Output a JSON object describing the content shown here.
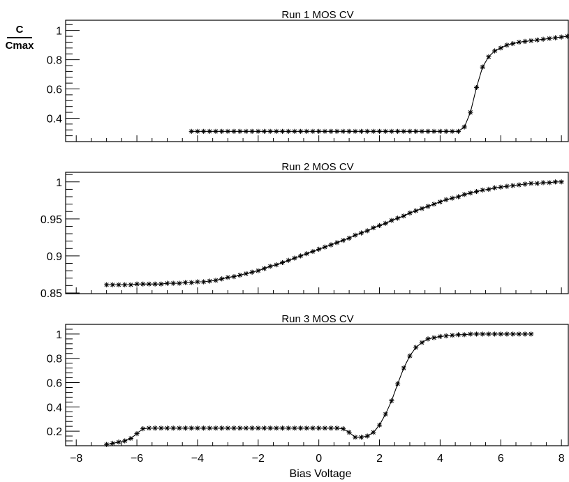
{
  "figure": {
    "xlabel": "Bias Voltage",
    "ylabel_numerator": "C",
    "ylabel_denominator": "Cmax",
    "x_ticks": [
      "−8",
      "−6",
      "−4",
      "−2",
      "0",
      "2",
      "4",
      "6",
      "8"
    ]
  },
  "chart_data": [
    {
      "type": "line",
      "title": "Run 1 MOS CV",
      "xlabel": "Bias Voltage",
      "ylabel": "C/Cmax",
      "xlim": [
        -8.35,
        8.25
      ],
      "ylim": [
        0.24,
        1.07
      ],
      "yticks": [
        0.4,
        0.6,
        0.8,
        1
      ],
      "ytick_labels": [
        "0.4",
        "0.6",
        "0.8",
        "1"
      ],
      "marker": "asterisk",
      "series": [
        {
          "x": [
            -4.2,
            -4.0,
            -3.8,
            -3.6,
            -3.4,
            -3.2,
            -3.0,
            -2.8,
            -2.6,
            -2.4,
            -2.2,
            -2.0,
            -1.8,
            -1.6,
            -1.4,
            -1.2,
            -1.0,
            -0.8,
            -0.6,
            -0.4,
            -0.2,
            0.0,
            0.2,
            0.4,
            0.6,
            0.8,
            1.0,
            1.2,
            1.4,
            1.6,
            1.8,
            2.0,
            2.2,
            2.4,
            2.6,
            2.8,
            3.0,
            3.2,
            3.4,
            3.6,
            3.8,
            4.0,
            4.2,
            4.4,
            4.6,
            4.8,
            5.0,
            5.2,
            5.4,
            5.6,
            5.8,
            6.0,
            6.2,
            6.4,
            6.6,
            6.8,
            7.0,
            7.2,
            7.4,
            7.6,
            7.8,
            8.0,
            8.2
          ],
          "y": [
            0.31,
            0.31,
            0.31,
            0.31,
            0.31,
            0.31,
            0.31,
            0.31,
            0.31,
            0.31,
            0.31,
            0.31,
            0.31,
            0.31,
            0.31,
            0.31,
            0.31,
            0.31,
            0.31,
            0.31,
            0.31,
            0.31,
            0.31,
            0.31,
            0.31,
            0.31,
            0.31,
            0.31,
            0.31,
            0.31,
            0.31,
            0.31,
            0.31,
            0.31,
            0.31,
            0.31,
            0.31,
            0.31,
            0.31,
            0.31,
            0.31,
            0.31,
            0.31,
            0.31,
            0.31,
            0.34,
            0.44,
            0.61,
            0.75,
            0.82,
            0.86,
            0.88,
            0.9,
            0.91,
            0.92,
            0.925,
            0.93,
            0.935,
            0.94,
            0.945,
            0.95,
            0.955,
            0.96
          ]
        }
      ]
    },
    {
      "type": "line",
      "title": "Run 2 MOS CV",
      "xlabel": "Bias Voltage",
      "ylabel": "C/Cmax",
      "xlim": [
        -8.35,
        8.25
      ],
      "ylim": [
        0.849,
        1.013
      ],
      "yticks": [
        0.85,
        0.9,
        0.95,
        1
      ],
      "ytick_labels": [
        "0.85",
        "0.9",
        "0.95",
        "1"
      ],
      "marker": "asterisk",
      "series": [
        {
          "x": [
            -7.0,
            -6.8,
            -6.6,
            -6.4,
            -6.2,
            -6.0,
            -5.8,
            -5.6,
            -5.4,
            -5.2,
            -5.0,
            -4.8,
            -4.6,
            -4.4,
            -4.2,
            -4.0,
            -3.8,
            -3.6,
            -3.4,
            -3.2,
            -3.0,
            -2.8,
            -2.6,
            -2.4,
            -2.2,
            -2.0,
            -1.8,
            -1.6,
            -1.4,
            -1.2,
            -1.0,
            -0.8,
            -0.6,
            -0.4,
            -0.2,
            0.0,
            0.2,
            0.4,
            0.6,
            0.8,
            1.0,
            1.2,
            1.4,
            1.6,
            1.8,
            2.0,
            2.2,
            2.4,
            2.6,
            2.8,
            3.0,
            3.2,
            3.4,
            3.6,
            3.8,
            4.0,
            4.2,
            4.4,
            4.6,
            4.8,
            5.0,
            5.2,
            5.4,
            5.6,
            5.8,
            6.0,
            6.2,
            6.4,
            6.6,
            6.8,
            7.0,
            7.2,
            7.4,
            7.6,
            7.8,
            8.0
          ],
          "y": [
            0.861,
            0.861,
            0.861,
            0.861,
            0.861,
            0.862,
            0.862,
            0.862,
            0.862,
            0.862,
            0.863,
            0.863,
            0.863,
            0.864,
            0.864,
            0.865,
            0.865,
            0.866,
            0.867,
            0.869,
            0.871,
            0.872,
            0.874,
            0.876,
            0.878,
            0.88,
            0.883,
            0.886,
            0.888,
            0.891,
            0.894,
            0.897,
            0.9,
            0.903,
            0.906,
            0.909,
            0.912,
            0.915,
            0.918,
            0.921,
            0.924,
            0.928,
            0.931,
            0.934,
            0.938,
            0.941,
            0.944,
            0.948,
            0.951,
            0.954,
            0.958,
            0.961,
            0.964,
            0.967,
            0.97,
            0.973,
            0.976,
            0.978,
            0.98,
            0.983,
            0.985,
            0.987,
            0.989,
            0.99,
            0.992,
            0.993,
            0.994,
            0.995,
            0.996,
            0.997,
            0.998,
            0.998,
            0.999,
            0.999,
            1.0,
            1.0
          ]
        }
      ]
    },
    {
      "type": "line",
      "title": "Run 3 MOS CV",
      "xlabel": "Bias Voltage",
      "xticks": [
        -8,
        -6,
        -4,
        -2,
        0,
        2,
        4,
        6,
        8
      ],
      "xlim": [
        -8.35,
        8.25
      ],
      "ylim": [
        0.08,
        1.08
      ],
      "yticks": [
        0.2,
        0.4,
        0.6,
        0.8,
        1
      ],
      "ytick_labels": [
        "0.2",
        "0.4",
        "0.6",
        "0.8",
        "1"
      ],
      "marker": "asterisk",
      "series": [
        {
          "x": [
            -7.0,
            -6.8,
            -6.6,
            -6.4,
            -6.2,
            -6.0,
            -5.8,
            -5.6,
            -5.4,
            -5.2,
            -5.0,
            -4.8,
            -4.6,
            -4.4,
            -4.2,
            -4.0,
            -3.8,
            -3.6,
            -3.4,
            -3.2,
            -3.0,
            -2.8,
            -2.6,
            -2.4,
            -2.2,
            -2.0,
            -1.8,
            -1.6,
            -1.4,
            -1.2,
            -1.0,
            -0.8,
            -0.6,
            -0.4,
            -0.2,
            0.0,
            0.2,
            0.4,
            0.6,
            0.8,
            1.0,
            1.2,
            1.4,
            1.6,
            1.8,
            2.0,
            2.2,
            2.4,
            2.6,
            2.8,
            3.0,
            3.2,
            3.4,
            3.6,
            3.8,
            4.0,
            4.2,
            4.4,
            4.6,
            4.8,
            5.0,
            5.2,
            5.4,
            5.6,
            5.8,
            6.0,
            6.2,
            6.4,
            6.6,
            6.8,
            7.0
          ],
          "y": [
            0.09,
            0.1,
            0.11,
            0.12,
            0.14,
            0.18,
            0.22,
            0.225,
            0.225,
            0.225,
            0.225,
            0.225,
            0.225,
            0.225,
            0.225,
            0.225,
            0.225,
            0.225,
            0.225,
            0.225,
            0.225,
            0.225,
            0.225,
            0.225,
            0.225,
            0.225,
            0.225,
            0.225,
            0.225,
            0.225,
            0.225,
            0.225,
            0.225,
            0.225,
            0.225,
            0.225,
            0.225,
            0.225,
            0.225,
            0.22,
            0.19,
            0.15,
            0.15,
            0.16,
            0.19,
            0.25,
            0.34,
            0.45,
            0.59,
            0.72,
            0.82,
            0.89,
            0.93,
            0.96,
            0.97,
            0.98,
            0.985,
            0.99,
            0.995,
            0.995,
            1.0,
            1.0,
            1.0,
            1.0,
            1.0,
            1.0,
            1.0,
            1.0,
            1.0,
            1.0,
            1.0
          ]
        }
      ]
    }
  ]
}
